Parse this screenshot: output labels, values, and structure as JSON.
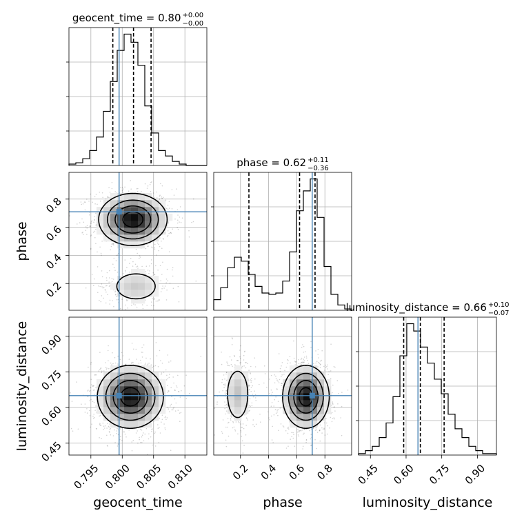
{
  "chart_data": {
    "type": "corner",
    "grid": true,
    "truth_color": "#4682b4",
    "parameters": [
      {
        "name": "geocent_time",
        "title": "geocent_time = 0.80",
        "title_sup": "+0.00",
        "title_sub": "−0.00",
        "range": [
          0.7915,
          0.8135
        ],
        "ticks": [
          0.795,
          0.8,
          0.805,
          0.81
        ],
        "tick_labels": [
          "0.795",
          "0.800",
          "0.805",
          "0.810"
        ],
        "truth": 0.7995,
        "quantiles": [
          0.7985,
          0.8018,
          0.8046
        ],
        "hist_edges": [
          0.7915,
          0.7926,
          0.7937,
          0.7948,
          0.7959,
          0.797,
          0.7981,
          0.7992,
          0.8003,
          0.8014,
          0.8025,
          0.8036,
          0.8047,
          0.8058,
          0.8069,
          0.808,
          0.8091,
          0.8102,
          0.8113,
          0.8124,
          0.8135
        ],
        "hist_counts": [
          1,
          2,
          5,
          11,
          21,
          40,
          62,
          85,
          97,
          91,
          74,
          44,
          24,
          11,
          7,
          3,
          1,
          0,
          0,
          0
        ]
      },
      {
        "name": "phase",
        "title": "phase = 0.62",
        "title_sup": "+0.11",
        "title_sub": "−0.36",
        "range": [
          0.01,
          0.99
        ],
        "ticks": [
          0.2,
          0.4,
          0.6,
          0.8
        ],
        "tick_labels": [
          "0.2",
          "0.4",
          "0.6",
          "0.8"
        ],
        "truth": 0.71,
        "quantiles": [
          0.26,
          0.62,
          0.73
        ],
        "hist_edges": [
          0.01,
          0.059,
          0.108,
          0.157,
          0.206,
          0.255,
          0.304,
          0.353,
          0.402,
          0.451,
          0.5,
          0.549,
          0.598,
          0.647,
          0.696,
          0.745,
          0.794,
          0.843,
          0.892,
          0.941,
          0.99
        ],
        "hist_counts": [
          8,
          17,
          32,
          40,
          37,
          27,
          18,
          13,
          12,
          13,
          22,
          44,
          75,
          90,
          99,
          70,
          33,
          12,
          4,
          1
        ]
      },
      {
        "name": "luminosity_distance",
        "title": "luminosity_distance = 0.66",
        "title_sup": "+0.10",
        "title_sub": "−0.07",
        "range": [
          0.4,
          0.98
        ],
        "ticks": [
          0.45,
          0.6,
          0.75,
          0.9
        ],
        "tick_labels": [
          "0.45",
          "0.60",
          "0.75",
          "0.90"
        ],
        "truth": 0.65,
        "quantiles": [
          0.59,
          0.66,
          0.76
        ],
        "hist_edges": [
          0.4,
          0.429,
          0.458,
          0.487,
          0.516,
          0.545,
          0.574,
          0.603,
          0.632,
          0.661,
          0.69,
          0.719,
          0.748,
          0.777,
          0.806,
          0.835,
          0.864,
          0.893,
          0.922,
          0.951,
          0.98
        ],
        "hist_counts": [
          1,
          3,
          6,
          12,
          22,
          40,
          68,
          90,
          85,
          74,
          63,
          52,
          42,
          28,
          18,
          12,
          6,
          3,
          1,
          1
        ]
      }
    ],
    "joint": [
      {
        "x": "geocent_time",
        "y": "phase",
        "blobs": [
          {
            "cx": 0.8017,
            "cy": 0.655,
            "sx": 0.0028,
            "sy": 0.095,
            "w": 1.0
          },
          {
            "cx": 0.8022,
            "cy": 0.18,
            "sx": 0.0026,
            "sy": 0.075,
            "w": 0.3
          }
        ],
        "contour_levels": [
          0.15,
          0.35,
          0.6,
          0.85
        ]
      },
      {
        "x": "geocent_time",
        "y": "luminosity_distance",
        "blobs": [
          {
            "cx": 0.8013,
            "cy": 0.645,
            "sx": 0.0027,
            "sy": 0.068,
            "w": 1.0
          }
        ],
        "contour_levels": [
          0.15,
          0.35,
          0.6,
          0.85
        ]
      },
      {
        "x": "phase",
        "y": "luminosity_distance",
        "blobs": [
          {
            "cx": 0.665,
            "cy": 0.645,
            "sx": 0.085,
            "sy": 0.068,
            "w": 1.0
          },
          {
            "cx": 0.18,
            "cy": 0.655,
            "sx": 0.055,
            "sy": 0.075,
            "w": 0.35
          }
        ],
        "contour_levels": [
          0.15,
          0.35,
          0.6,
          0.85
        ]
      }
    ]
  }
}
